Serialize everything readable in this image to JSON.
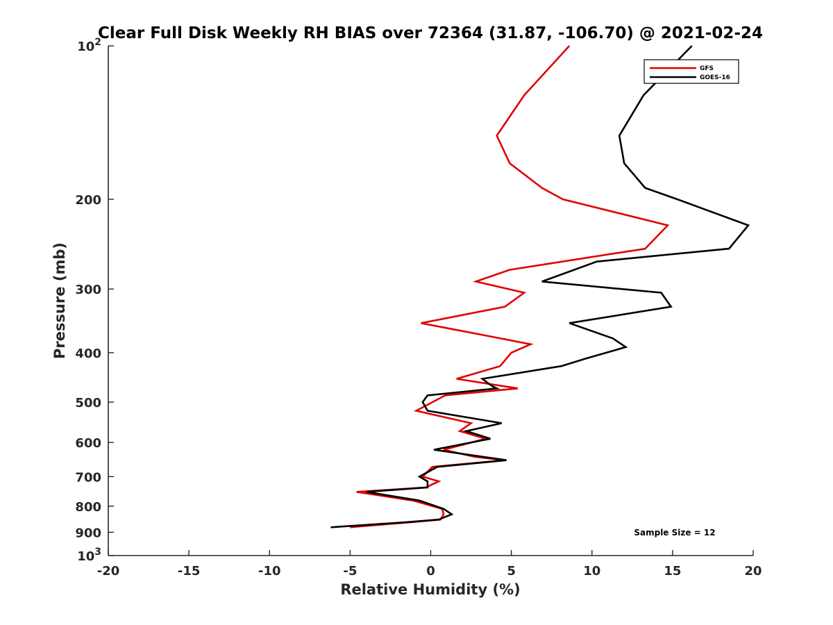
{
  "chart_data": {
    "type": "line",
    "title": "Clear Full Disk Weekly RH BIAS over 72364 (31.87, -106.70) @ 2021-02-24",
    "xlabel": "Relative Humidity (%)",
    "ylabel": "Pressure (mb)",
    "xlim": [
      -20,
      20
    ],
    "ylim": [
      100,
      1000
    ],
    "y_scale": "log",
    "y_reversed": true,
    "grid": false,
    "legend_position": "top-right",
    "x_ticks": [
      "-20",
      "-15",
      "-10",
      "-5",
      "0",
      "5",
      "10",
      "15",
      "20"
    ],
    "y_ticks": [
      {
        "value": 100,
        "base": "10",
        "exp": "2"
      },
      {
        "value": 200,
        "label": "200"
      },
      {
        "value": 300,
        "label": "300"
      },
      {
        "value": 400,
        "label": "400"
      },
      {
        "value": 500,
        "label": "500"
      },
      {
        "value": 600,
        "label": "600"
      },
      {
        "value": 700,
        "label": "700"
      },
      {
        "value": 800,
        "label": "800"
      },
      {
        "value": 900,
        "label": "900"
      },
      {
        "value": 1000,
        "base": "10",
        "exp": "3"
      }
    ],
    "annotation": "Sample Size = 12",
    "series": [
      {
        "name": "GFS",
        "color": "#e00000",
        "points": [
          [
            8.6,
            100
          ],
          [
            5.8,
            125
          ],
          [
            4.1,
            150
          ],
          [
            4.9,
            170
          ],
          [
            6.9,
            190
          ],
          [
            8.2,
            200
          ],
          [
            14.7,
            225
          ],
          [
            13.3,
            250
          ],
          [
            4.9,
            275
          ],
          [
            2.8,
            290
          ],
          [
            5.8,
            305
          ],
          [
            4.6,
            325
          ],
          [
            -0.6,
            350
          ],
          [
            3.4,
            370
          ],
          [
            6.2,
            385
          ],
          [
            5.0,
            400
          ],
          [
            4.3,
            425
          ],
          [
            1.6,
            450
          ],
          [
            5.4,
            470
          ],
          [
            0.9,
            485
          ],
          [
            -0.9,
            520
          ],
          [
            2.5,
            550
          ],
          [
            1.8,
            570
          ],
          [
            3.4,
            590
          ],
          [
            0.8,
            620
          ],
          [
            2.7,
            640
          ],
          [
            4.6,
            650
          ],
          [
            0.1,
            670
          ],
          [
            -0.5,
            700
          ],
          [
            0.5,
            715
          ],
          [
            -0.3,
            735
          ],
          [
            -4.6,
            750
          ],
          [
            -1.1,
            780
          ],
          [
            0.7,
            810
          ],
          [
            0.8,
            830
          ],
          [
            0.6,
            850
          ],
          [
            -1.2,
            860
          ],
          [
            -5.0,
            880
          ]
        ]
      },
      {
        "name": "GOES-16",
        "color": "#000000",
        "points": [
          [
            16.2,
            100
          ],
          [
            13.2,
            125
          ],
          [
            11.7,
            150
          ],
          [
            12.0,
            170
          ],
          [
            13.3,
            190
          ],
          [
            15.3,
            200
          ],
          [
            19.7,
            225
          ],
          [
            18.5,
            250
          ],
          [
            10.3,
            265
          ],
          [
            6.9,
            290
          ],
          [
            14.3,
            305
          ],
          [
            14.9,
            325
          ],
          [
            8.6,
            350
          ],
          [
            11.3,
            375
          ],
          [
            12.1,
            390
          ],
          [
            9.7,
            410
          ],
          [
            8.1,
            425
          ],
          [
            3.2,
            450
          ],
          [
            3.8,
            465
          ],
          [
            4.1,
            470
          ],
          [
            -0.2,
            485
          ],
          [
            -0.5,
            500
          ],
          [
            -0.2,
            520
          ],
          [
            4.4,
            550
          ],
          [
            2.2,
            570
          ],
          [
            3.7,
            590
          ],
          [
            0.2,
            620
          ],
          [
            3.2,
            640
          ],
          [
            4.7,
            650
          ],
          [
            0.4,
            670
          ],
          [
            -0.7,
            700
          ],
          [
            -0.2,
            715
          ],
          [
            -0.2,
            735
          ],
          [
            -4.0,
            750
          ],
          [
            -0.7,
            780
          ],
          [
            0.8,
            810
          ],
          [
            1.3,
            830
          ],
          [
            0.5,
            850
          ],
          [
            -1.5,
            860
          ],
          [
            -6.2,
            880
          ]
        ]
      }
    ]
  }
}
